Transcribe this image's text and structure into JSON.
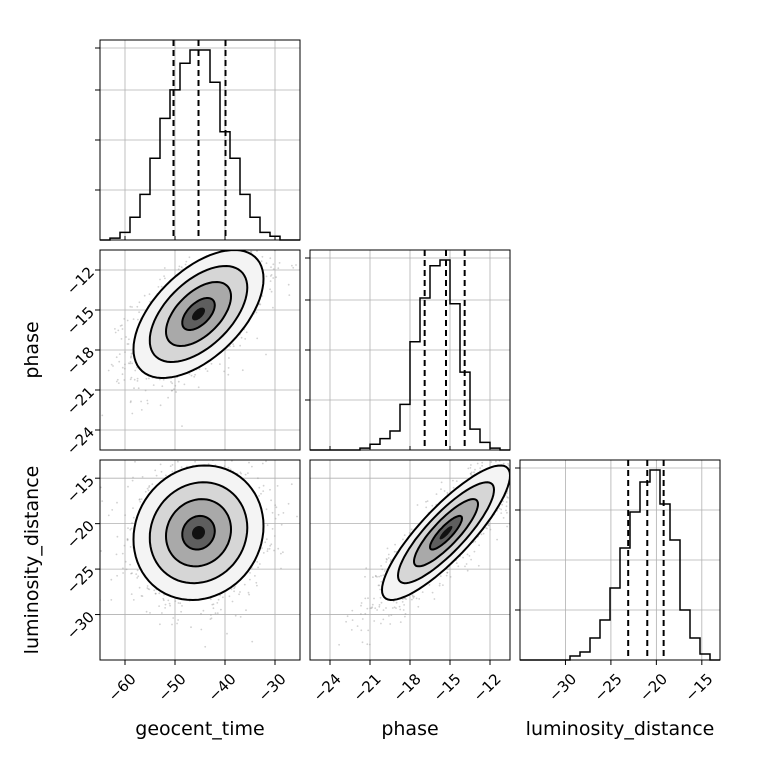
{
  "chart_data": {
    "type": "corner",
    "parameters": [
      "geocent_time",
      "phase",
      "luminosity_distance"
    ],
    "ranges": {
      "geocent_time": [
        -65,
        -25
      ],
      "phase": [
        -25.5,
        -10.5
      ],
      "luminosity_distance": [
        -35,
        -13
      ]
    },
    "ticks": {
      "geocent_time": [
        -60,
        -50,
        -40,
        -30
      ],
      "phase_x": [
        -24,
        -21,
        -18,
        -15,
        -12
      ],
      "phase_y": [
        -12,
        -15,
        -18,
        -21,
        -24
      ],
      "luminosity_distance_x": [
        -30,
        -25,
        -20,
        -15
      ],
      "luminosity_distance_y": [
        -15,
        -20,
        -25,
        -30
      ]
    },
    "tick_labels": {
      "geocent_time": [
        "−60",
        "−50",
        "−40",
        "−30"
      ],
      "phase_x": [
        "−24",
        "−21",
        "−18",
        "−15",
        "−12"
      ],
      "phase_y": [
        "−12",
        "−15",
        "−18",
        "−21",
        "−24"
      ],
      "luminosity_distance_x": [
        "−30",
        "−25",
        "−20",
        "−15"
      ],
      "luminosity_distance_y": [
        "−15",
        "−20",
        "−25",
        "−30"
      ]
    },
    "axis_labels": {
      "bottom": [
        "geocent_time",
        "phase",
        "luminosity_distance"
      ],
      "left": [
        "phase",
        "luminosity_distance"
      ]
    },
    "histograms": {
      "geocent_time": {
        "bin_edges": [
          -65,
          -63,
          -61,
          -59,
          -57,
          -55,
          -53,
          -51,
          -49,
          -47,
          -45,
          -43,
          -41,
          -39,
          -37,
          -35,
          -33,
          -31,
          -29,
          -27,
          -25
        ],
        "counts": [
          0.0,
          0.01,
          0.04,
          0.12,
          0.24,
          0.43,
          0.64,
          0.79,
          0.93,
          1.0,
          1.0,
          0.83,
          0.57,
          0.43,
          0.24,
          0.12,
          0.04,
          0.02,
          0.0,
          0.0
        ],
        "quantiles": [
          -50.3,
          -45.3,
          -39.9
        ]
      },
      "phase": {
        "bin_edges": [
          -25.5,
          -24.75,
          -24.0,
          -23.25,
          -22.5,
          -21.75,
          -21.0,
          -20.25,
          -19.5,
          -18.75,
          -18.0,
          -17.25,
          -16.5,
          -15.75,
          -15.0,
          -14.25,
          -13.5,
          -12.75,
          -12.0,
          -11.25,
          -10.5
        ],
        "counts": [
          0.0,
          0.0,
          0.0,
          0.0,
          0.0,
          0.01,
          0.03,
          0.06,
          0.1,
          0.24,
          0.57,
          0.8,
          0.97,
          1.0,
          0.77,
          0.41,
          0.11,
          0.04,
          0.01,
          0.0
        ],
        "quantiles": [
          -16.9,
          -15.3,
          -13.9
        ]
      },
      "luminosity_distance": {
        "bin_edges": [
          -35.0,
          -33.9,
          -32.8,
          -31.7,
          -30.6,
          -29.5,
          -28.4,
          -27.3,
          -26.2,
          -25.1,
          -24.0,
          -22.9,
          -21.8,
          -20.7,
          -19.6,
          -18.5,
          -17.4,
          -16.3,
          -15.2,
          -14.1,
          -13.0
        ],
        "counts": [
          0.0,
          0.0,
          0.0,
          0.0,
          0.0,
          0.02,
          0.04,
          0.11,
          0.2,
          0.36,
          0.56,
          0.74,
          0.89,
          0.95,
          0.78,
          0.6,
          0.25,
          0.11,
          0.03,
          0.0
        ],
        "quantiles": [
          -23.1,
          -21.0,
          -19.2
        ]
      }
    },
    "pairs": [
      {
        "x": "geocent_time",
        "y": "phase",
        "mean": [
          -45.3,
          -15.3
        ],
        "std": [
          6.5,
          2.4
        ],
        "correlation": 0.55
      },
      {
        "x": "geocent_time",
        "y": "luminosity_distance",
        "mean": [
          -45.3,
          -21.0
        ],
        "std": [
          6.5,
          3.7
        ],
        "correlation": 0.1
      },
      {
        "x": "phase",
        "y": "luminosity_distance",
        "mean": [
          -15.3,
          -21.0
        ],
        "std": [
          2.4,
          3.7
        ],
        "correlation": 0.85
      }
    ],
    "contour_levels_sigma": [
      0.5,
      1.0,
      1.5,
      2.0
    ],
    "grid": true,
    "colors": {
      "samples": "#9a9a9a",
      "line": "#000000",
      "grid": "#b0b0b0"
    }
  }
}
